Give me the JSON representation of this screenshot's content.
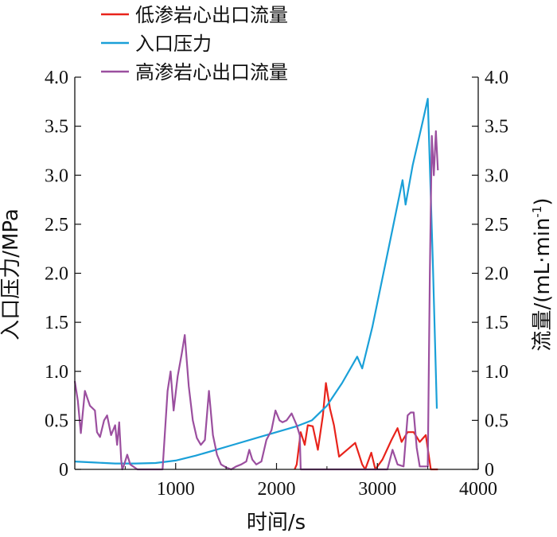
{
  "chart_data": {
    "type": "line",
    "title": "",
    "xlabel": "时间/s",
    "ylabel_left": "入口压力/MPa",
    "ylabel_right": "流量/(mL·min",
    "ylabel_right_sup": "-1",
    "xlim": [
      0,
      4000
    ],
    "ylim_left": [
      0,
      4.0
    ],
    "ylim_right": [
      0,
      4.0
    ],
    "x_ticks": [
      "1000",
      "2000",
      "3000",
      "4000"
    ],
    "y_ticks": [
      "0",
      "0.5",
      "1.0",
      "1.5",
      "2.0",
      "2.5",
      "3.0",
      "3.5",
      "4.0"
    ],
    "grid": false,
    "legend_position": "top-center",
    "series": [
      {
        "name": "低渗岩心出口流量",
        "color": "#e8231b",
        "axis": "right",
        "points": [
          [
            2180,
            0
          ],
          [
            2200,
            0.05
          ],
          [
            2240,
            0.38
          ],
          [
            2280,
            0.25
          ],
          [
            2310,
            0.45
          ],
          [
            2360,
            0.44
          ],
          [
            2410,
            0.2
          ],
          [
            2460,
            0.55
          ],
          [
            2490,
            0.88
          ],
          [
            2530,
            0.62
          ],
          [
            2570,
            0.45
          ],
          [
            2620,
            0.13
          ],
          [
            2700,
            0.2
          ],
          [
            2780,
            0.27
          ],
          [
            2850,
            0.05
          ],
          [
            2880,
            0
          ],
          [
            2940,
            0.17
          ],
          [
            2980,
            0
          ],
          [
            3050,
            0.1
          ],
          [
            3140,
            0.3
          ],
          [
            3200,
            0.42
          ],
          [
            3240,
            0.28
          ],
          [
            3300,
            0.38
          ],
          [
            3360,
            0.38
          ],
          [
            3420,
            0.28
          ],
          [
            3480,
            0.35
          ],
          [
            3530,
            0
          ],
          [
            3600,
            0
          ]
        ]
      },
      {
        "name": "入口压力",
        "color": "#1aa0d8",
        "axis": "left",
        "points": [
          [
            0,
            0.08
          ],
          [
            200,
            0.07
          ],
          [
            400,
            0.06
          ],
          [
            600,
            0.06
          ],
          [
            800,
            0.065
          ],
          [
            1000,
            0.09
          ],
          [
            1200,
            0.14
          ],
          [
            1400,
            0.2
          ],
          [
            1600,
            0.26
          ],
          [
            1800,
            0.32
          ],
          [
            2000,
            0.38
          ],
          [
            2200,
            0.44
          ],
          [
            2350,
            0.5
          ],
          [
            2500,
            0.65
          ],
          [
            2650,
            0.88
          ],
          [
            2800,
            1.15
          ],
          [
            2850,
            1.03
          ],
          [
            2950,
            1.45
          ],
          [
            3050,
            1.95
          ],
          [
            3150,
            2.45
          ],
          [
            3250,
            2.95
          ],
          [
            3280,
            2.7
          ],
          [
            3350,
            3.1
          ],
          [
            3450,
            3.55
          ],
          [
            3500,
            3.78
          ],
          [
            3550,
            2.1
          ],
          [
            3590,
            0.62
          ]
        ]
      },
      {
        "name": "高渗岩心出口流量",
        "color": "#9b4f9f",
        "axis": "right",
        "points": [
          [
            0,
            0.9
          ],
          [
            30,
            0.7
          ],
          [
            60,
            0.37
          ],
          [
            100,
            0.8
          ],
          [
            150,
            0.65
          ],
          [
            200,
            0.6
          ],
          [
            220,
            0.38
          ],
          [
            250,
            0.33
          ],
          [
            290,
            0.5
          ],
          [
            320,
            0.55
          ],
          [
            360,
            0.35
          ],
          [
            400,
            0.45
          ],
          [
            420,
            0.25
          ],
          [
            440,
            0.48
          ],
          [
            460,
            0.1
          ],
          [
            470,
            0
          ],
          [
            490,
            0.05
          ],
          [
            520,
            0.15
          ],
          [
            550,
            0.05
          ],
          [
            620,
            0
          ],
          [
            700,
            0
          ],
          [
            800,
            0
          ],
          [
            870,
            0
          ],
          [
            920,
            0.8
          ],
          [
            950,
            1.0
          ],
          [
            980,
            0.6
          ],
          [
            1020,
            0.95
          ],
          [
            1060,
            1.18
          ],
          [
            1090,
            1.37
          ],
          [
            1130,
            0.85
          ],
          [
            1170,
            0.5
          ],
          [
            1210,
            0.32
          ],
          [
            1250,
            0.25
          ],
          [
            1290,
            0.3
          ],
          [
            1330,
            0.8
          ],
          [
            1370,
            0.35
          ],
          [
            1410,
            0.15
          ],
          [
            1450,
            0.05
          ],
          [
            1500,
            0.02
          ],
          [
            1550,
            0
          ],
          [
            1600,
            0.03
          ],
          [
            1650,
            0.05
          ],
          [
            1700,
            0.08
          ],
          [
            1730,
            0.2
          ],
          [
            1760,
            0.1
          ],
          [
            1800,
            0.05
          ],
          [
            1850,
            0.08
          ],
          [
            1900,
            0.3
          ],
          [
            1950,
            0.4
          ],
          [
            1990,
            0.6
          ],
          [
            2030,
            0.5
          ],
          [
            2060,
            0.48
          ],
          [
            2100,
            0.5
          ],
          [
            2150,
            0.57
          ],
          [
            2200,
            0.45
          ],
          [
            2230,
            0.35
          ],
          [
            2240,
            0
          ],
          [
            2400,
            0
          ],
          [
            2800,
            0
          ],
          [
            3100,
            0
          ],
          [
            3150,
            0.2
          ],
          [
            3200,
            0.05
          ],
          [
            3260,
            0.03
          ],
          [
            3300,
            0.55
          ],
          [
            3330,
            0.58
          ],
          [
            3360,
            0.58
          ],
          [
            3390,
            0.22
          ],
          [
            3420,
            0.03
          ],
          [
            3500,
            0.03
          ],
          [
            3520,
            2.0
          ],
          [
            3540,
            3.4
          ],
          [
            3560,
            3.0
          ],
          [
            3580,
            3.45
          ],
          [
            3600,
            3.05
          ]
        ]
      }
    ]
  }
}
